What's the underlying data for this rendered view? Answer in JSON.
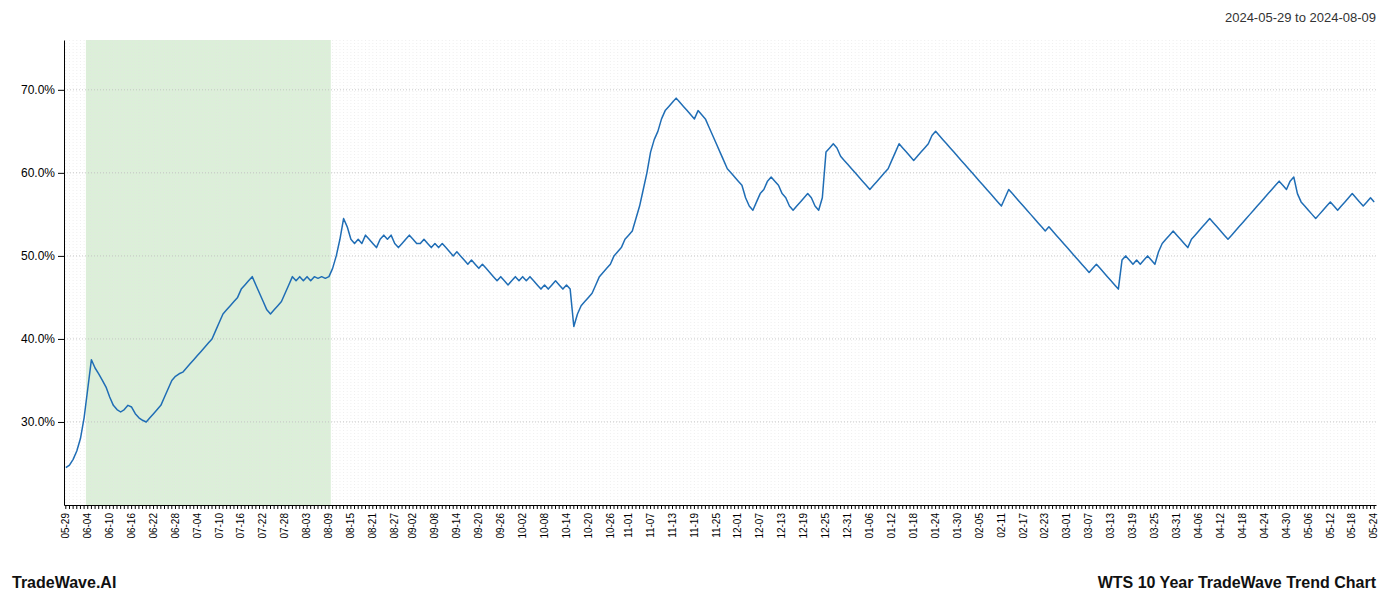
{
  "chart_data": {
    "type": "line",
    "title": "2024-05-29 to 2024-08-09",
    "annotations": [
      "TradeWave.AI",
      "WTS 10 Year TradeWave Trend Chart"
    ],
    "categories": [
      "05-29",
      null,
      null,
      null,
      null,
      null,
      "06-04",
      null,
      null,
      null,
      null,
      null,
      "06-10",
      null,
      null,
      null,
      null,
      null,
      "06-16",
      null,
      null,
      null,
      null,
      null,
      "06-22",
      null,
      null,
      null,
      null,
      null,
      "06-28",
      null,
      null,
      null,
      null,
      null,
      "07-04",
      null,
      null,
      null,
      null,
      null,
      "07-10",
      null,
      null,
      null,
      null,
      null,
      "07-16",
      null,
      null,
      null,
      null,
      null,
      "07-22",
      null,
      null,
      null,
      null,
      null,
      "07-28",
      null,
      null,
      null,
      null,
      null,
      "08-03",
      null,
      null,
      null,
      null,
      null,
      "08-09",
      null,
      null,
      null,
      null,
      null,
      "08-15",
      null,
      null,
      null,
      null,
      null,
      "08-21",
      null,
      null,
      null,
      null,
      null,
      "08-27",
      null,
      null,
      null,
      null,
      "09-02",
      null,
      null,
      null,
      null,
      null,
      "09-08",
      null,
      null,
      null,
      null,
      null,
      "09-14",
      null,
      null,
      null,
      null,
      null,
      "09-20",
      null,
      null,
      null,
      null,
      null,
      "09-26",
      null,
      null,
      null,
      null,
      null,
      "10-02",
      null,
      null,
      null,
      null,
      null,
      "10-08",
      null,
      null,
      null,
      null,
      null,
      "10-14",
      null,
      null,
      null,
      null,
      null,
      "10-20",
      null,
      null,
      null,
      null,
      null,
      "10-26",
      null,
      null,
      null,
      null,
      "11-01",
      null,
      null,
      null,
      null,
      null,
      "11-07",
      null,
      null,
      null,
      null,
      null,
      "11-13",
      null,
      null,
      null,
      null,
      null,
      "11-19",
      null,
      null,
      null,
      null,
      null,
      "11-25",
      null,
      null,
      null,
      null,
      null,
      "12-01",
      null,
      null,
      null,
      null,
      null,
      "12-07",
      null,
      null,
      null,
      null,
      null,
      "12-13",
      null,
      null,
      null,
      null,
      null,
      "12-19",
      null,
      null,
      null,
      null,
      null,
      "12-25",
      null,
      null,
      null,
      null,
      null,
      "12-31",
      null,
      null,
      null,
      null,
      null,
      "01-06",
      null,
      null,
      null,
      null,
      null,
      "01-12",
      null,
      null,
      null,
      null,
      null,
      "01-18",
      null,
      null,
      null,
      null,
      null,
      "01-24",
      null,
      null,
      null,
      null,
      null,
      "01-30",
      null,
      null,
      null,
      null,
      null,
      "02-05",
      null,
      null,
      null,
      null,
      null,
      "02-11",
      null,
      null,
      null,
      null,
      null,
      "02-17",
      null,
      null,
      null,
      null,
      null,
      "02-23",
      null,
      null,
      null,
      null,
      null,
      "03-01",
      null,
      null,
      null,
      null,
      null,
      "03-07",
      null,
      null,
      null,
      null,
      null,
      "03-13",
      null,
      null,
      null,
      null,
      null,
      "03-19",
      null,
      null,
      null,
      null,
      null,
      "03-25",
      null,
      null,
      null,
      null,
      null,
      "03-31",
      null,
      null,
      null,
      null,
      null,
      "04-06",
      null,
      null,
      null,
      null,
      null,
      "04-12",
      null,
      null,
      null,
      null,
      null,
      "04-18",
      null,
      null,
      null,
      null,
      null,
      "04-24",
      null,
      null,
      null,
      null,
      null,
      "04-30",
      null,
      null,
      null,
      null,
      null,
      "05-06",
      null,
      null,
      null,
      null,
      null,
      "05-12",
      null,
      null,
      null,
      null,
      null,
      "05-18",
      null,
      null,
      null,
      null,
      null,
      "05-24"
    ],
    "values": [
      24.5,
      24.8,
      25.5,
      26.5,
      28.0,
      30.5,
      34.0,
      37.5,
      36.5,
      35.8,
      35.0,
      34.2,
      33.0,
      32.0,
      31.5,
      31.2,
      31.5,
      32.0,
      31.8,
      31.0,
      30.5,
      30.2,
      30.0,
      30.5,
      31.0,
      31.5,
      32.0,
      33.0,
      34.0,
      35.0,
      35.5,
      35.8,
      36.0,
      36.5,
      37.0,
      37.5,
      38.0,
      38.5,
      39.0,
      39.5,
      40.0,
      41.0,
      42.0,
      43.0,
      43.5,
      44.0,
      44.5,
      45.0,
      46.0,
      46.5,
      47.0,
      47.5,
      46.5,
      45.5,
      44.5,
      43.5,
      43.0,
      43.5,
      44.0,
      44.5,
      45.5,
      46.5,
      47.5,
      47.0,
      47.5,
      47.0,
      47.5,
      47.0,
      47.5,
      47.3,
      47.5,
      47.3,
      47.5,
      48.5,
      50.0,
      52.0,
      54.5,
      53.5,
      52.0,
      51.5,
      52.0,
      51.5,
      52.5,
      52.0,
      51.5,
      51.0,
      52.0,
      52.5,
      52.0,
      52.5,
      51.5,
      51.0,
      51.5,
      52.0,
      52.5,
      52.0,
      51.5,
      51.5,
      52.0,
      51.5,
      51.0,
      51.5,
      51.0,
      51.5,
      51.0,
      50.5,
      50.0,
      50.5,
      50.0,
      49.5,
      49.0,
      49.5,
      49.0,
      48.5,
      49.0,
      48.5,
      48.0,
      47.5,
      47.0,
      47.5,
      47.0,
      46.5,
      47.0,
      47.5,
      47.0,
      47.5,
      47.0,
      47.5,
      47.0,
      46.5,
      46.0,
      46.5,
      46.0,
      46.5,
      47.0,
      46.5,
      46.0,
      46.5,
      46.0,
      41.5,
      43.0,
      44.0,
      44.5,
      45.0,
      45.5,
      46.5,
      47.5,
      48.0,
      48.5,
      49.0,
      50.0,
      50.5,
      51.0,
      52.0,
      52.5,
      53.0,
      54.5,
      56.0,
      58.0,
      60.0,
      62.5,
      64.0,
      65.0,
      66.5,
      67.5,
      68.0,
      68.5,
      69.0,
      68.5,
      68.0,
      67.5,
      67.0,
      66.5,
      67.5,
      67.0,
      66.5,
      65.5,
      64.5,
      63.5,
      62.5,
      61.5,
      60.5,
      60.0,
      59.5,
      59.0,
      58.5,
      57.0,
      56.0,
      55.5,
      56.5,
      57.5,
      58.0,
      59.0,
      59.5,
      59.0,
      58.5,
      57.5,
      57.0,
      56.0,
      55.5,
      56.0,
      56.5,
      57.0,
      57.5,
      57.0,
      56.0,
      55.5,
      57.0,
      62.5,
      63.0,
      63.5,
      63.0,
      62.0,
      61.5,
      61.0,
      60.5,
      60.0,
      59.5,
      59.0,
      58.5,
      58.0,
      58.5,
      59.0,
      59.5,
      60.0,
      60.5,
      61.5,
      62.5,
      63.5,
      63.0,
      62.5,
      62.0,
      61.5,
      62.0,
      62.5,
      63.0,
      63.5,
      64.5,
      65.0,
      64.5,
      64.0,
      63.5,
      63.0,
      62.5,
      62.0,
      61.5,
      61.0,
      60.5,
      60.0,
      59.5,
      59.0,
      58.5,
      58.0,
      57.5,
      57.0,
      56.5,
      56.0,
      57.0,
      58.0,
      57.5,
      57.0,
      56.5,
      56.0,
      55.5,
      55.0,
      54.5,
      54.0,
      53.5,
      53.0,
      53.5,
      53.0,
      52.5,
      52.0,
      51.5,
      51.0,
      50.5,
      50.0,
      49.5,
      49.0,
      48.5,
      48.0,
      48.5,
      49.0,
      48.5,
      48.0,
      47.5,
      47.0,
      46.5,
      46.0,
      49.5,
      50.0,
      49.5,
      49.0,
      49.5,
      49.0,
      49.5,
      50.0,
      49.5,
      49.0,
      50.5,
      51.5,
      52.0,
      52.5,
      53.0,
      52.5,
      52.0,
      51.5,
      51.0,
      52.0,
      52.5,
      53.0,
      53.5,
      54.0,
      54.5,
      54.0,
      53.5,
      53.0,
      52.5,
      52.0,
      52.5,
      53.0,
      53.5,
      54.0,
      54.5,
      55.0,
      55.5,
      56.0,
      56.5,
      57.0,
      57.5,
      58.0,
      58.5,
      59.0,
      58.5,
      58.0,
      59.0,
      59.5,
      57.5,
      56.5,
      56.0,
      55.5,
      55.0,
      54.5,
      55.0,
      55.5,
      56.0,
      56.5,
      56.0,
      55.5,
      56.0,
      56.5,
      57.0,
      57.5,
      57.0,
      56.5,
      56.0,
      56.5,
      57.0,
      56.5
    ],
    "color": "#1f6db5",
    "ylim": [
      20,
      76
    ],
    "yticks": [
      {
        "value": 30.0,
        "label": "30.0%"
      },
      {
        "value": 40.0,
        "label": "40.0%"
      },
      {
        "value": 50.0,
        "label": "50.0%"
      },
      {
        "value": 60.0,
        "label": "60.0%"
      },
      {
        "value": 70.0,
        "label": "70.0%"
      }
    ],
    "grid": true,
    "highlight": {
      "start": "06-04",
      "end": "08-09",
      "color": "#d6ecd2"
    }
  }
}
